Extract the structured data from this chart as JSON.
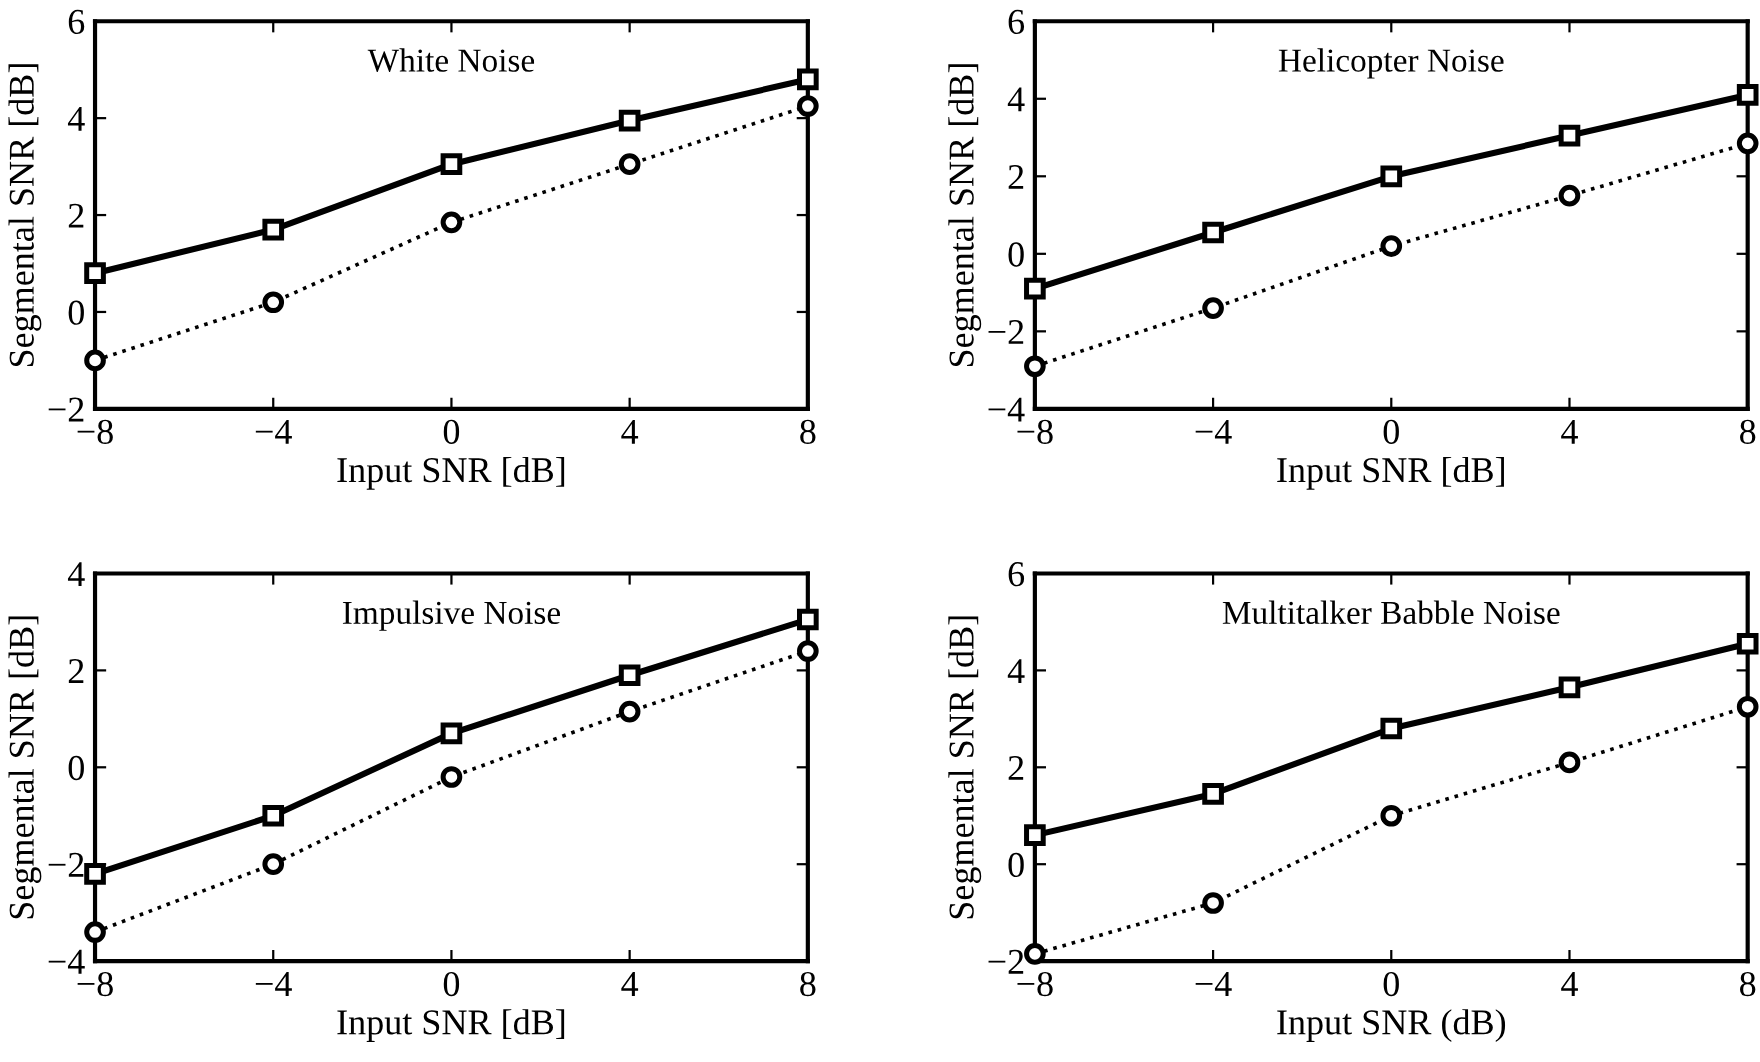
{
  "chart_data": [
    {
      "type": "line",
      "title": "White Noise",
      "xlabel": "Input SNR [dB]",
      "ylabel": "Segmental SNR [dB]",
      "x": [
        -8,
        -4,
        0,
        4,
        8
      ],
      "xlim": [
        -8,
        8
      ],
      "xticks": [
        -8,
        -4,
        0,
        4,
        8
      ],
      "ylim": [
        -2,
        6
      ],
      "yticks": [
        -2,
        0,
        2,
        4,
        6
      ],
      "grid": false,
      "legend": false,
      "series": [
        {
          "color": "#000000",
          "marker": "square",
          "line_style": "solid",
          "values": [
            0.8,
            1.7,
            3.05,
            3.95,
            4.8
          ]
        },
        {
          "color": "#000000",
          "marker": "circle",
          "line_style": "dotted",
          "values": [
            -1.0,
            0.2,
            1.85,
            3.05,
            4.25
          ]
        }
      ]
    },
    {
      "type": "line",
      "title": "Helicopter Noise",
      "xlabel": "Input SNR [dB]",
      "ylabel": "Segmental SNR [dB]",
      "x": [
        -8,
        -4,
        0,
        4,
        8
      ],
      "xlim": [
        -8,
        8
      ],
      "xticks": [
        -8,
        -4,
        0,
        4,
        8
      ],
      "ylim": [
        -4,
        6
      ],
      "yticks": [
        -4,
        -2,
        0,
        2,
        4,
        6
      ],
      "grid": false,
      "legend": false,
      "series": [
        {
          "color": "#000000",
          "marker": "square",
          "line_style": "solid",
          "values": [
            -0.9,
            0.55,
            2.0,
            3.05,
            4.1
          ]
        },
        {
          "color": "#000000",
          "marker": "circle",
          "line_style": "dotted",
          "values": [
            -2.9,
            -1.4,
            0.2,
            1.5,
            2.85
          ]
        }
      ]
    },
    {
      "type": "line",
      "title": "Impulsive Noise",
      "xlabel": "Input SNR [dB]",
      "ylabel": "Segmental SNR [dB]",
      "x": [
        -8,
        -4,
        0,
        4,
        8
      ],
      "xlim": [
        -8,
        8
      ],
      "xticks": [
        -8,
        -4,
        0,
        4,
        8
      ],
      "ylim": [
        -4,
        4
      ],
      "yticks": [
        -4,
        -2,
        0,
        2,
        4
      ],
      "grid": false,
      "legend": false,
      "series": [
        {
          "color": "#000000",
          "marker": "square",
          "line_style": "solid",
          "values": [
            -2.2,
            -1.0,
            0.7,
            1.9,
            3.05
          ]
        },
        {
          "color": "#000000",
          "marker": "circle",
          "line_style": "dotted",
          "values": [
            -3.4,
            -2.0,
            -0.2,
            1.15,
            2.4
          ]
        }
      ]
    },
    {
      "type": "line",
      "title": "Multitalker Babble Noise",
      "xlabel": "Input SNR (dB)",
      "ylabel": "Segmental SNR [dB]",
      "x": [
        -8,
        -4,
        0,
        4,
        8
      ],
      "xlim": [
        -8,
        8
      ],
      "xticks": [
        -8,
        -4,
        0,
        4,
        8
      ],
      "ylim": [
        -2,
        6
      ],
      "yticks": [
        -2,
        0,
        2,
        4,
        6
      ],
      "grid": false,
      "legend": false,
      "series": [
        {
          "color": "#000000",
          "marker": "square",
          "line_style": "solid",
          "values": [
            0.6,
            1.45,
            2.8,
            3.65,
            4.55
          ]
        },
        {
          "color": "#000000",
          "marker": "circle",
          "line_style": "dotted",
          "values": [
            -1.85,
            -0.8,
            1.0,
            2.1,
            3.25
          ]
        }
      ]
    }
  ]
}
